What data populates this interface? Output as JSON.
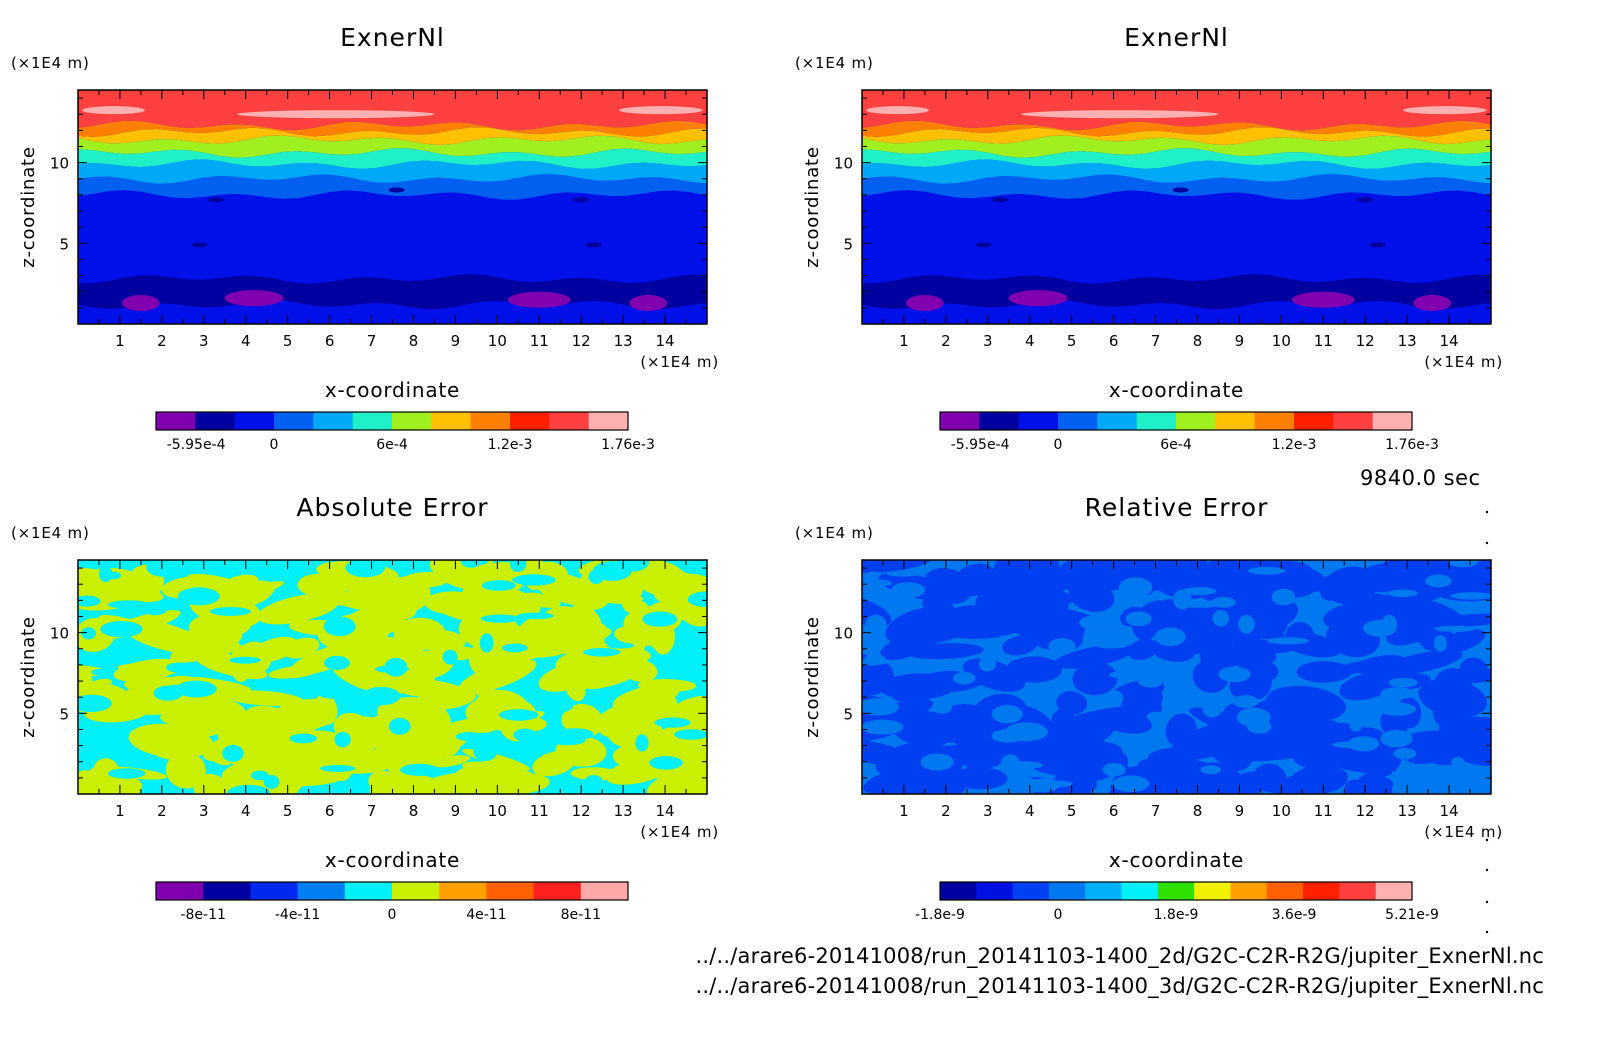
{
  "footer": {
    "time_label": "9840.0 sec",
    "files": [
      "../../arare6-20141008/run_20141103-1400_2d/G2C-C2R-R2G/jupiter_ExnerNl.nc",
      "../../arare6-20141008/run_20141103-1400_3d/G2C-C2R-R2G/jupiter_ExnerNl.nc"
    ]
  },
  "chart_data": [
    {
      "type": "heatmap",
      "title": "ExnerNl",
      "xlabel": "x-coordinate",
      "ylabel": "z-coordinate",
      "x_unit": "(×1E4 m)",
      "y_unit": "(×1E4 m)",
      "xlim": [
        0,
        15
      ],
      "ylim": [
        0,
        14.5
      ],
      "x_ticks": [
        "1",
        "2",
        "3",
        "4",
        "5",
        "6",
        "7",
        "8",
        "9",
        "10",
        "11",
        "12",
        "13",
        "14"
      ],
      "y_ticks": [
        "5",
        "10"
      ],
      "colorbar": {
        "labels": [
          "-5.95e-4",
          "0",
          "6e-4",
          "1.2e-3",
          "1.76e-3"
        ],
        "colors": [
          "#8000b0",
          "#0000a0",
          "#0010e8",
          "#0060f0",
          "#00a8f8",
          "#20f0c8",
          "#a0f020",
          "#ffc000",
          "#ff8000",
          "#ff2000",
          "#ff4040",
          "#ffb0b0"
        ]
      },
      "field": "exner"
    },
    {
      "type": "heatmap",
      "title": "ExnerNl",
      "xlabel": "x-coordinate",
      "ylabel": "z-coordinate",
      "x_unit": "(×1E4 m)",
      "y_unit": "(×1E4 m)",
      "xlim": [
        0,
        15
      ],
      "ylim": [
        0,
        14.5
      ],
      "x_ticks": [
        "1",
        "2",
        "3",
        "4",
        "5",
        "6",
        "7",
        "8",
        "9",
        "10",
        "11",
        "12",
        "13",
        "14"
      ],
      "y_ticks": [
        "5",
        "10"
      ],
      "colorbar": {
        "labels": [
          "-5.95e-4",
          "0",
          "6e-4",
          "1.2e-3",
          "1.76e-3"
        ],
        "colors": [
          "#8000b0",
          "#0000a0",
          "#0010e8",
          "#0060f0",
          "#00a8f8",
          "#20f0c8",
          "#a0f020",
          "#ffc000",
          "#ff8000",
          "#ff2000",
          "#ff4040",
          "#ffb0b0"
        ]
      },
      "field": "exner"
    },
    {
      "type": "heatmap",
      "title": "Absolute Error",
      "xlabel": "x-coordinate",
      "ylabel": "z-coordinate",
      "x_unit": "(×1E4 m)",
      "y_unit": "(×1E4 m)",
      "xlim": [
        0,
        15
      ],
      "ylim": [
        0,
        14.5
      ],
      "x_ticks": [
        "1",
        "2",
        "3",
        "4",
        "5",
        "6",
        "7",
        "8",
        "9",
        "10",
        "11",
        "12",
        "13",
        "14"
      ],
      "y_ticks": [
        "5",
        "10"
      ],
      "colorbar": {
        "labels": [
          "-8e-11",
          "-4e-11",
          "0",
          "4e-11",
          "8e-11"
        ],
        "colors": [
          "#8000b0",
          "#0000a0",
          "#0028f0",
          "#0080f0",
          "#00f0f8",
          "#c8f000",
          "#ffa000",
          "#ff6000",
          "#ff2020",
          "#ffa8a8"
        ]
      },
      "field": "abs",
      "field_colors": [
        "#00f0f8",
        "#c8f000"
      ]
    },
    {
      "type": "heatmap",
      "title": "Relative Error",
      "xlabel": "x-coordinate",
      "ylabel": "z-coordinate",
      "x_unit": "(×1E4 m)",
      "y_unit": "(×1E4 m)",
      "xlim": [
        0,
        15
      ],
      "ylim": [
        0,
        14.5
      ],
      "x_ticks": [
        "1",
        "2",
        "3",
        "4",
        "5",
        "6",
        "7",
        "8",
        "9",
        "10",
        "11",
        "12",
        "13",
        "14"
      ],
      "y_ticks": [
        "5",
        "10"
      ],
      "colorbar": {
        "labels": [
          "-1.8e-9",
          "0",
          "1.8e-9",
          "3.6e-9",
          "5.21e-9"
        ],
        "colors": [
          "#0000a0",
          "#0010e0",
          "#0040f0",
          "#0078f0",
          "#00b0f8",
          "#00f0f8",
          "#30e000",
          "#f0f000",
          "#ffa000",
          "#ff6000",
          "#ff2000",
          "#ff4040",
          "#ffb0b0"
        ]
      },
      "field": "rel",
      "field_colors": [
        "#0078f0",
        "#0040f0"
      ]
    }
  ]
}
